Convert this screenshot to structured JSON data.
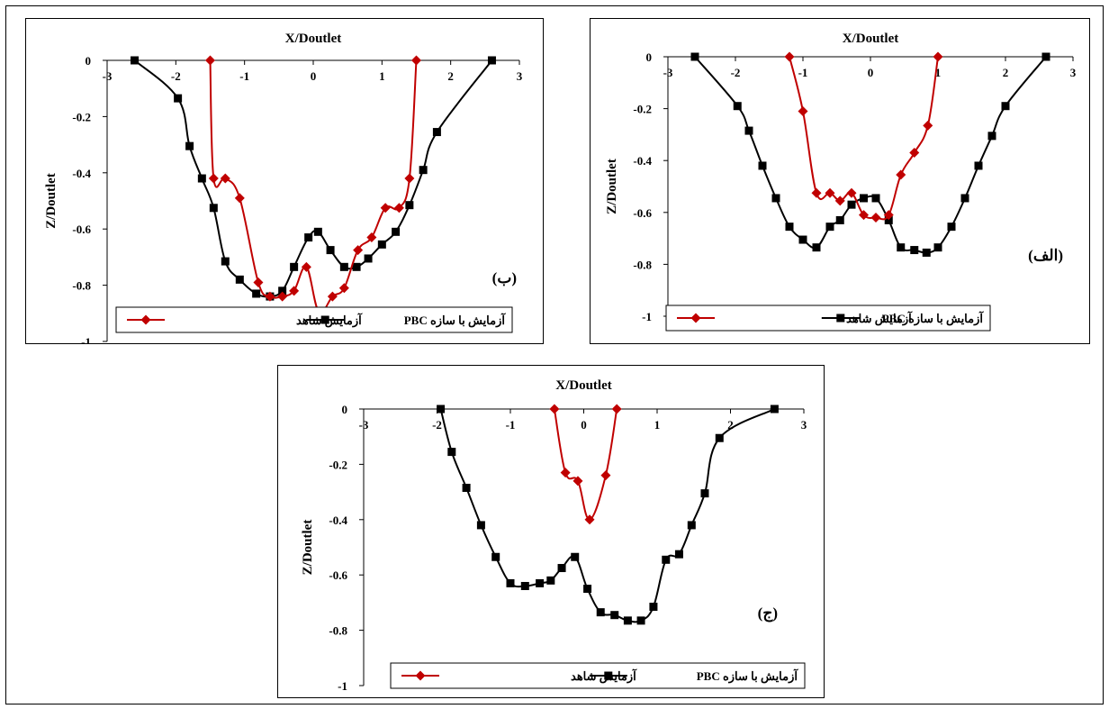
{
  "legend": {
    "control": "آزمایش شاهد",
    "pbc": "آزمایش با سازه PBC"
  },
  "colors": {
    "control": "#c00000",
    "pbc": "#000000"
  },
  "chart_data": [
    {
      "type": "line",
      "panel": "ب",
      "xlabel": "X/Doutlet",
      "ylabel": "Z/Doutlet",
      "xlim": [
        -3,
        3
      ],
      "ylim": [
        -1,
        0
      ],
      "xticks": [
        "-3",
        "-2",
        "-1",
        "0",
        "1",
        "2",
        "3"
      ],
      "yticks": [
        "0",
        "-0.2",
        "-0.4",
        "-0.6",
        "-0.8",
        "-1"
      ],
      "series": [
        {
          "name": "آزمایش با سازه PBC",
          "key": "pbc",
          "x": [
            -2.6,
            -1.97,
            -1.8,
            -1.62,
            -1.45,
            -1.28,
            -1.07,
            -0.83,
            -0.63,
            -0.45,
            -0.28,
            -0.07,
            0.07,
            0.25,
            0.45,
            0.63,
            0.8,
            1.0,
            1.2,
            1.4,
            1.6,
            1.8,
            2.6
          ],
          "y": [
            0,
            -0.135,
            -0.305,
            -0.42,
            -0.525,
            -0.715,
            -0.78,
            -0.83,
            -0.84,
            -0.82,
            -0.735,
            -0.63,
            -0.61,
            -0.675,
            -0.735,
            -0.735,
            -0.705,
            -0.655,
            -0.61,
            -0.515,
            -0.39,
            -0.255,
            0
          ]
        },
        {
          "name": "آزمایش شاهد",
          "key": "control",
          "x": [
            -1.5,
            -1.45,
            -1.28,
            -1.07,
            -0.8,
            -0.63,
            -0.45,
            -0.28,
            -0.1,
            0.08,
            0.28,
            0.45,
            0.65,
            0.85,
            1.05,
            1.25,
            1.4,
            1.5
          ],
          "y": [
            0,
            -0.42,
            -0.42,
            -0.49,
            -0.79,
            -0.84,
            -0.84,
            -0.82,
            -0.735,
            -0.895,
            -0.84,
            -0.81,
            -0.675,
            -0.63,
            -0.525,
            -0.525,
            -0.42,
            0
          ]
        }
      ]
    },
    {
      "type": "line",
      "panel": "الف",
      "xlabel": "X/Doutlet",
      "ylabel": "Z/Doutlet",
      "xlim": [
        -3,
        3
      ],
      "ylim": [
        -1,
        0
      ],
      "xticks": [
        "-3",
        "-2",
        "-1",
        "0",
        "1",
        "2",
        "3"
      ],
      "yticks": [
        "0",
        "-0.2",
        "-0.4",
        "-0.6",
        "-0.8",
        "-1"
      ],
      "series": [
        {
          "name": "آزمایش با سازه PBC",
          "key": "pbc",
          "x": [
            -2.6,
            -1.97,
            -1.8,
            -1.6,
            -1.4,
            -1.2,
            -1.0,
            -0.8,
            -0.6,
            -0.45,
            -0.28,
            -0.1,
            0.08,
            0.27,
            0.45,
            0.65,
            0.83,
            1.0,
            1.2,
            1.4,
            1.6,
            1.8,
            2.0,
            2.6
          ],
          "y": [
            0,
            -0.19,
            -0.285,
            -0.42,
            -0.545,
            -0.655,
            -0.705,
            -0.735,
            -0.655,
            -0.63,
            -0.57,
            -0.545,
            -0.545,
            -0.63,
            -0.735,
            -0.745,
            -0.755,
            -0.735,
            -0.655,
            -0.545,
            -0.42,
            -0.305,
            -0.19,
            0
          ]
        },
        {
          "name": "آزمایش شاهد",
          "key": "control",
          "x": [
            -1.2,
            -1.0,
            -0.8,
            -0.6,
            -0.45,
            -0.28,
            -0.1,
            0.08,
            0.27,
            0.45,
            0.65,
            0.85,
            1.0
          ],
          "y": [
            0,
            -0.21,
            -0.525,
            -0.525,
            -0.555,
            -0.525,
            -0.61,
            -0.62,
            -0.61,
            -0.455,
            -0.37,
            -0.265,
            0
          ]
        }
      ]
    },
    {
      "type": "line",
      "panel": "ج",
      "xlabel": "X/Doutlet",
      "ylabel": "Z/Doutlet",
      "xlim": [
        -3,
        3
      ],
      "ylim": [
        -1,
        0
      ],
      "xticks": [
        "-3",
        "-2",
        "-1",
        "0",
        "1",
        "2",
        "3"
      ],
      "yticks": [
        "0",
        "-0.2",
        "-0.4",
        "-0.6",
        "-0.8",
        "-1"
      ],
      "series": [
        {
          "name": "آزمایش با سازه PBC",
          "key": "pbc",
          "x": [
            -1.95,
            -1.8,
            -1.6,
            -1.4,
            -1.2,
            -1.0,
            -0.8,
            -0.6,
            -0.45,
            -0.3,
            -0.12,
            0.05,
            0.23,
            0.42,
            0.6,
            0.78,
            0.95,
            1.12,
            1.3,
            1.47,
            1.65,
            1.85,
            2.6
          ],
          "y": [
            0,
            -0.155,
            -0.285,
            -0.42,
            -0.535,
            -0.63,
            -0.64,
            -0.63,
            -0.62,
            -0.575,
            -0.535,
            -0.65,
            -0.735,
            -0.745,
            -0.765,
            -0.765,
            -0.715,
            -0.545,
            -0.525,
            -0.42,
            -0.305,
            -0.105,
            0
          ]
        },
        {
          "name": "آزمایش شاهد",
          "key": "control",
          "x": [
            -0.4,
            -0.25,
            -0.08,
            0.08,
            0.3,
            0.45
          ],
          "y": [
            0,
            -0.23,
            -0.26,
            -0.4,
            -0.24,
            0
          ]
        }
      ]
    }
  ]
}
